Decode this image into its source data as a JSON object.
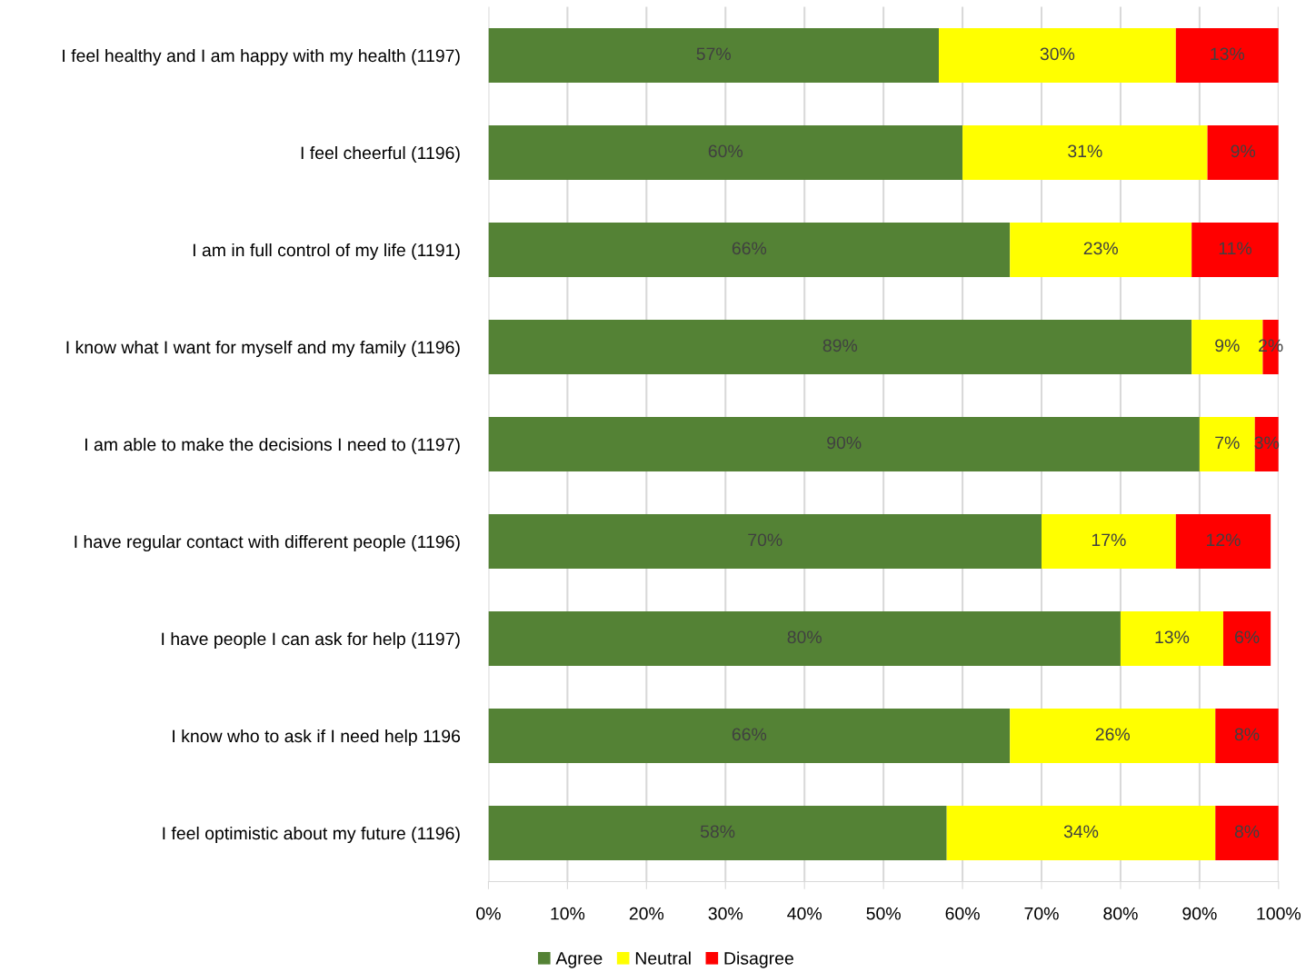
{
  "chart_data": {
    "type": "bar",
    "orientation": "horizontal",
    "stacked": true,
    "categories": [
      "I feel healthy and I am happy with my health (1197)",
      "I feel cheerful (1196)",
      "I am in full control of my life (1191)",
      "I know what I want for myself and my family (1196)",
      "I am able to make the decisions I need to (1197)",
      "I have regular contact with different people (1196)",
      "I have people I can ask for help (1197)",
      "I know who to ask if I need help 1196",
      "I feel optimistic about my future (1196)"
    ],
    "series": [
      {
        "name": "Agree",
        "color": "#548235",
        "values": [
          57,
          60,
          66,
          89,
          90,
          70,
          80,
          66,
          58
        ],
        "value_labels": [
          "57%",
          "60%",
          "66%",
          "89%",
          "90%",
          "70%",
          "80%",
          "66%",
          "58%"
        ]
      },
      {
        "name": "Neutral",
        "color": "#ffff00",
        "values": [
          30,
          31,
          23,
          9,
          7,
          17,
          13,
          26,
          34
        ],
        "value_labels": [
          "30%",
          "31%",
          "23%",
          "9%",
          "7%",
          "17%",
          "13%",
          "26%",
          "34%"
        ]
      },
      {
        "name": "Disagree",
        "color": "#ff0000",
        "values": [
          13,
          9,
          11,
          2,
          3,
          12,
          6,
          8,
          8
        ],
        "value_labels": [
          "13%",
          "9%",
          "11%",
          "2%",
          "3%",
          "12%",
          "6%",
          "8%",
          "8%"
        ]
      }
    ],
    "xlim": [
      0,
      100
    ],
    "xticks": [
      {
        "value": 0,
        "label": "0%"
      },
      {
        "value": 10,
        "label": "10%"
      },
      {
        "value": 20,
        "label": "20%"
      },
      {
        "value": 30,
        "label": "30%"
      },
      {
        "value": 40,
        "label": "40%"
      },
      {
        "value": 50,
        "label": "50%"
      },
      {
        "value": 60,
        "label": "60%"
      },
      {
        "value": 70,
        "label": "70%"
      },
      {
        "value": 80,
        "label": "80%"
      },
      {
        "value": 90,
        "label": "90%"
      },
      {
        "value": 100,
        "label": "100%"
      }
    ],
    "grid": "x",
    "legend": "bottom"
  }
}
